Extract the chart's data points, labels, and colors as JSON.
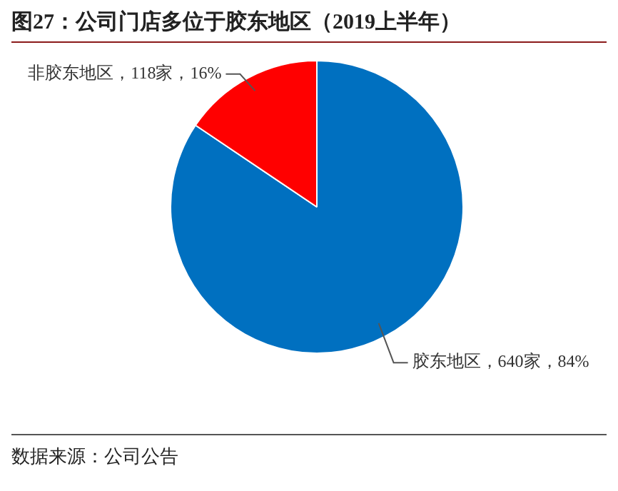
{
  "chart_data": {
    "type": "pie",
    "title": "图27：公司门店多位于胶东地区（2019上半年）",
    "categories": [
      "胶东地区",
      "非胶东地区"
    ],
    "values": [
      640,
      118
    ],
    "colors": [
      "#0070c0",
      "#ff0000"
    ],
    "value_labels": [
      "640家，84%",
      "118家，16%"
    ],
    "annotations": [
      "数据来源：公司公告"
    ]
  }
}
